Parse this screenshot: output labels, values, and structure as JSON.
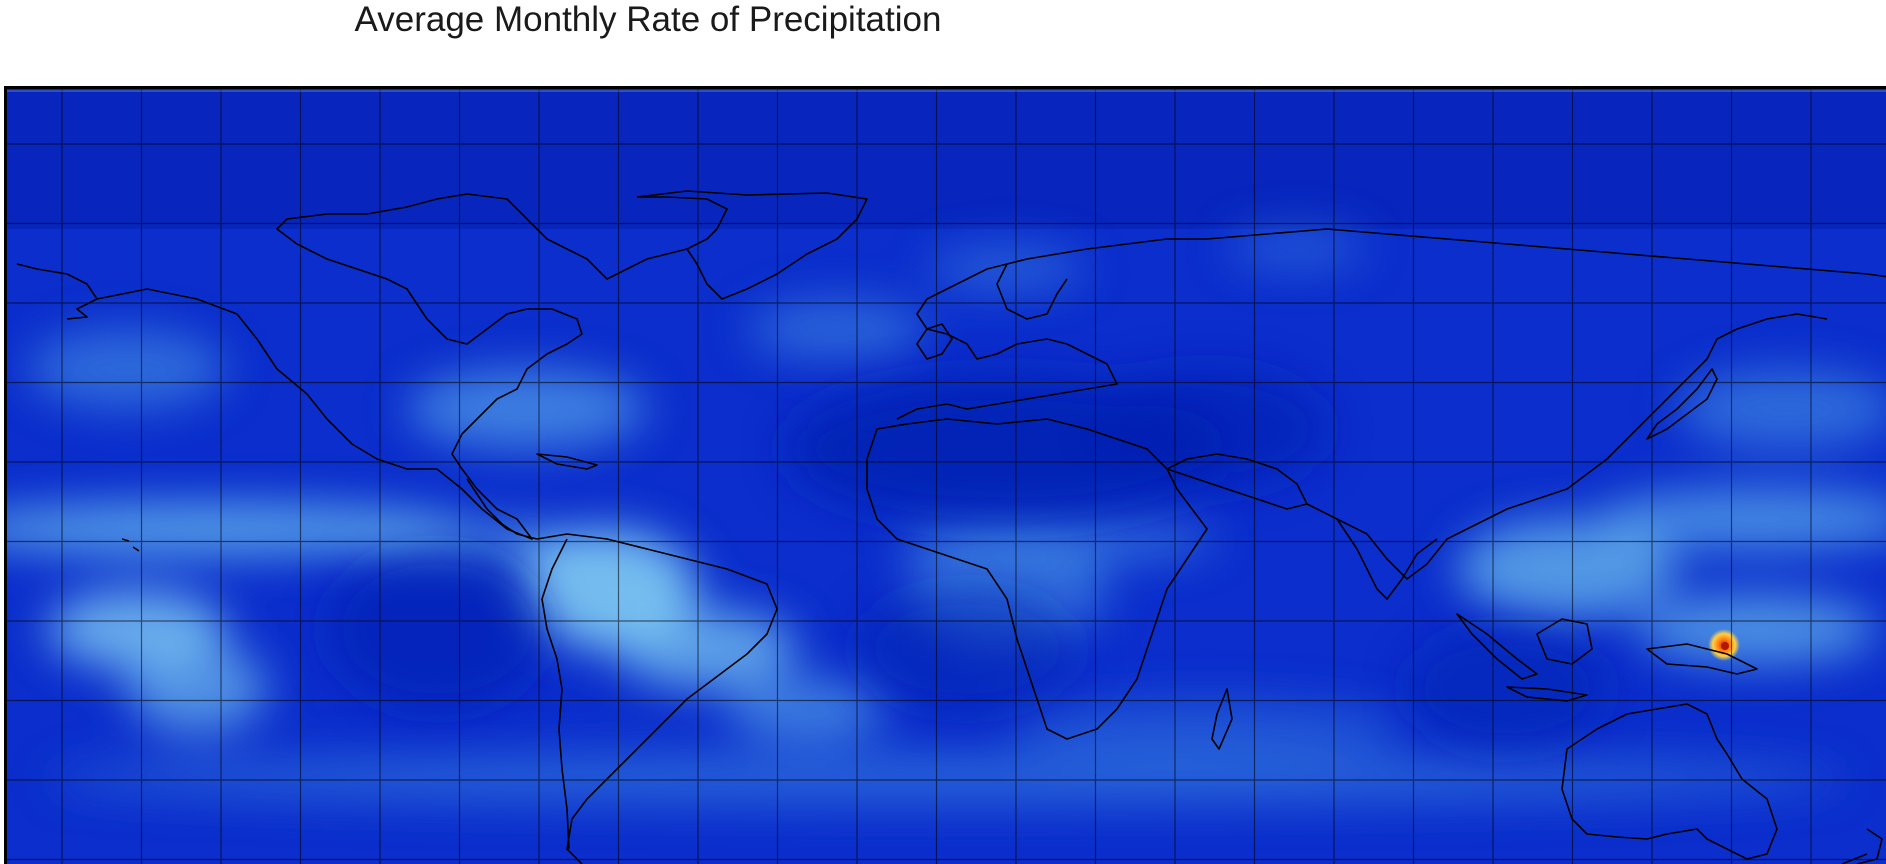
{
  "map": {
    "title": "Average Monthly Rate of Precipitation",
    "colors": {
      "dry": "#0a2fd0",
      "wet": "#7fd3f5",
      "peak": "#e8400f",
      "coastline": "#000000",
      "grid": "#000000"
    },
    "features": [
      "global-precipitation-field",
      "latitude-longitude-graticule",
      "continent-coastlines",
      "high-rainfall-hotspot"
    ]
  }
}
